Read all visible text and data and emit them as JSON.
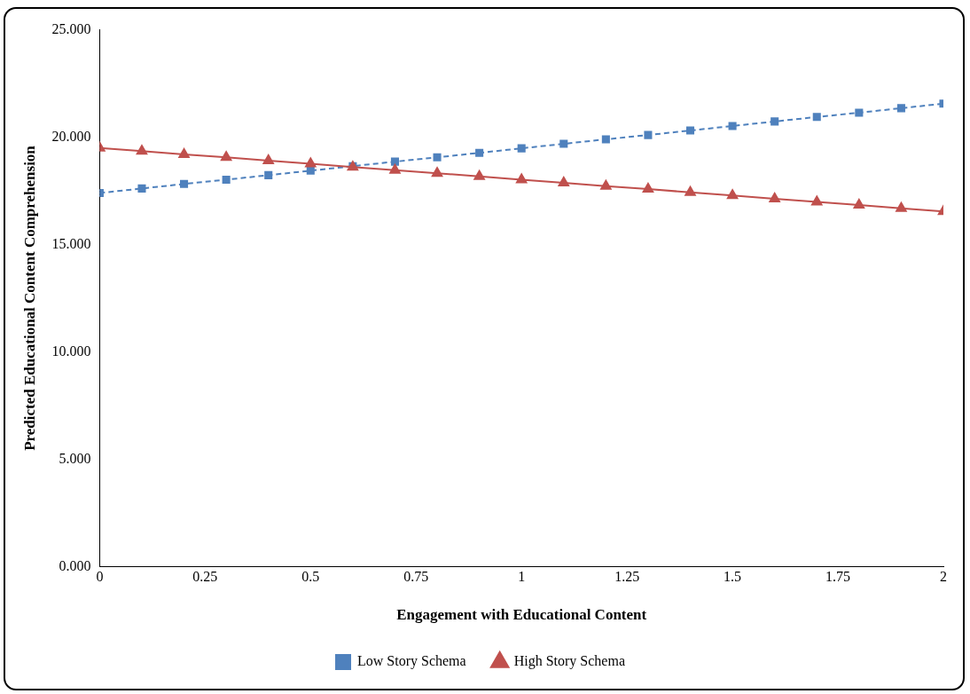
{
  "chart_data": {
    "type": "line",
    "xlabel": "Engagement with Educational Content",
    "ylabel": "Predicted Educational Content Comprehension",
    "x": [
      0,
      0.1,
      0.2,
      0.3,
      0.4,
      0.5,
      0.6,
      0.7,
      0.8,
      0.9,
      1,
      1.1,
      1.2,
      1.3,
      1.4,
      1.5,
      1.6,
      1.7,
      1.8,
      1.9,
      2
    ],
    "xlim": [
      0,
      2
    ],
    "xticks": [
      0,
      0.25,
      0.5,
      0.75,
      1,
      1.25,
      1.5,
      1.75,
      2
    ],
    "ylim": [
      0,
      25
    ],
    "yticks": [
      {
        "value": 0,
        "label": "0.000"
      },
      {
        "value": 5,
        "label": "5.000"
      },
      {
        "value": 10,
        "label": "10.000"
      },
      {
        "value": 15,
        "label": "15.000"
      },
      {
        "value": 20,
        "label": "20.000"
      },
      {
        "value": 25,
        "label": "25.000"
      }
    ],
    "grid": false,
    "legend": "bottom",
    "series": [
      {
        "name": "Low Story Schema",
        "color": "#4f81bd",
        "marker": "square",
        "line_style": "dashed",
        "values": [
          17.4,
          17.61,
          17.82,
          18.02,
          18.23,
          18.44,
          18.65,
          18.86,
          19.06,
          19.27,
          19.48,
          19.69,
          19.9,
          20.1,
          20.31,
          20.52,
          20.73,
          20.94,
          21.14,
          21.35,
          21.56
        ]
      },
      {
        "name": "High Story Schema",
        "color": "#c0504d",
        "marker": "triangle",
        "line_style": "solid",
        "values": [
          19.5,
          19.35,
          19.2,
          19.06,
          18.91,
          18.76,
          18.61,
          18.46,
          18.32,
          18.17,
          18.02,
          17.87,
          17.72,
          17.58,
          17.43,
          17.28,
          17.13,
          16.98,
          16.84,
          16.69,
          16.54
        ]
      }
    ]
  }
}
